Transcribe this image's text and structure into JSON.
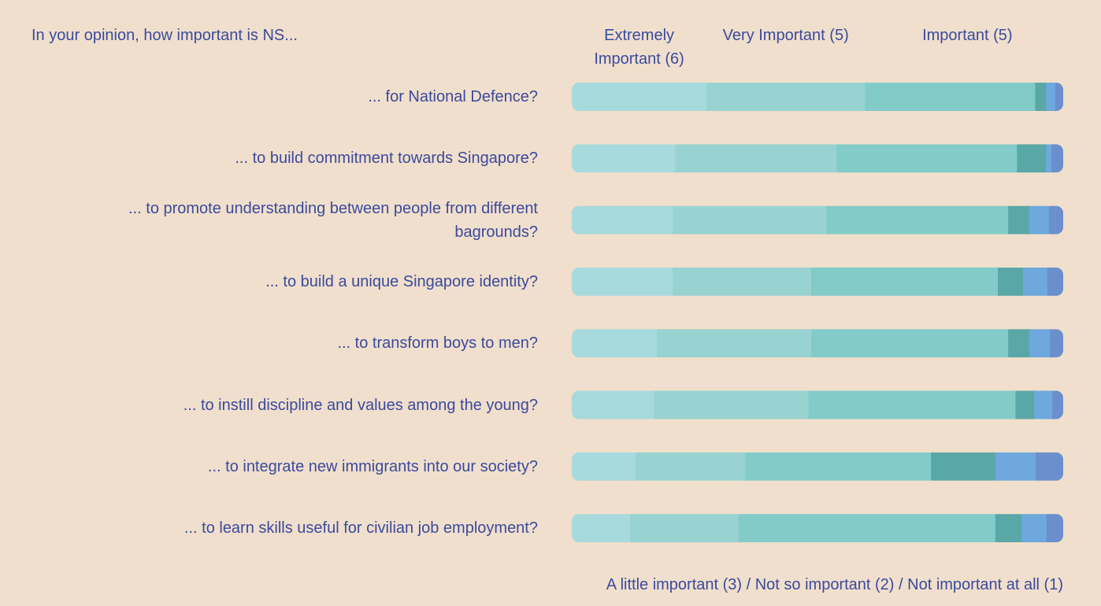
{
  "chart_data": {
    "type": "stacked_bar_horizontal",
    "subtitle": "In your opinion, how important is NS...",
    "categories": [
      "... for National Defence?",
      "... to build commitment towards Singapore?",
      "... to promote understanding between people from different bagrounds?",
      "... to build a unique Singapore identity?",
      "... to transform boys to men?",
      "... to instill discipline and values among the young?",
      "... to integrate new immigrants into our society?",
      "... to learn skills useful for civilian job employment?"
    ],
    "series": [
      {
        "name": "Extremely Important (6)",
        "color": "#a7dadc",
        "values": [
          27.4,
          21.0,
          20.5,
          20.5,
          17.3,
          16.7,
          13.0,
          11.9
        ]
      },
      {
        "name": "Very Important (5)",
        "color": "#98d3d1",
        "values": [
          32.2,
          32.9,
          31.3,
          28.2,
          31.4,
          31.4,
          22.3,
          22.1
        ]
      },
      {
        "name": "Important (5)",
        "color": "#82cbc9",
        "values": [
          34.6,
          36.7,
          37.0,
          38.0,
          40.1,
          42.1,
          37.8,
          52.2
        ]
      },
      {
        "color": "#5aa7a7",
        "values": [
          2.2,
          5.9,
          4.3,
          5.1,
          4.3,
          3.8,
          13.1,
          5.3
        ]
      },
      {
        "color": "#6ea8dc",
        "values": [
          1.9,
          1.1,
          4.0,
          5.0,
          4.2,
          3.7,
          8.2,
          5.1
        ]
      },
      {
        "color": "#6b8fcc",
        "values": [
          1.6,
          2.4,
          2.9,
          3.2,
          2.7,
          2.2,
          5.6,
          3.4
        ]
      }
    ],
    "legend_note": "A little important (3) / Not so important (2) / Not important at all (1)"
  }
}
